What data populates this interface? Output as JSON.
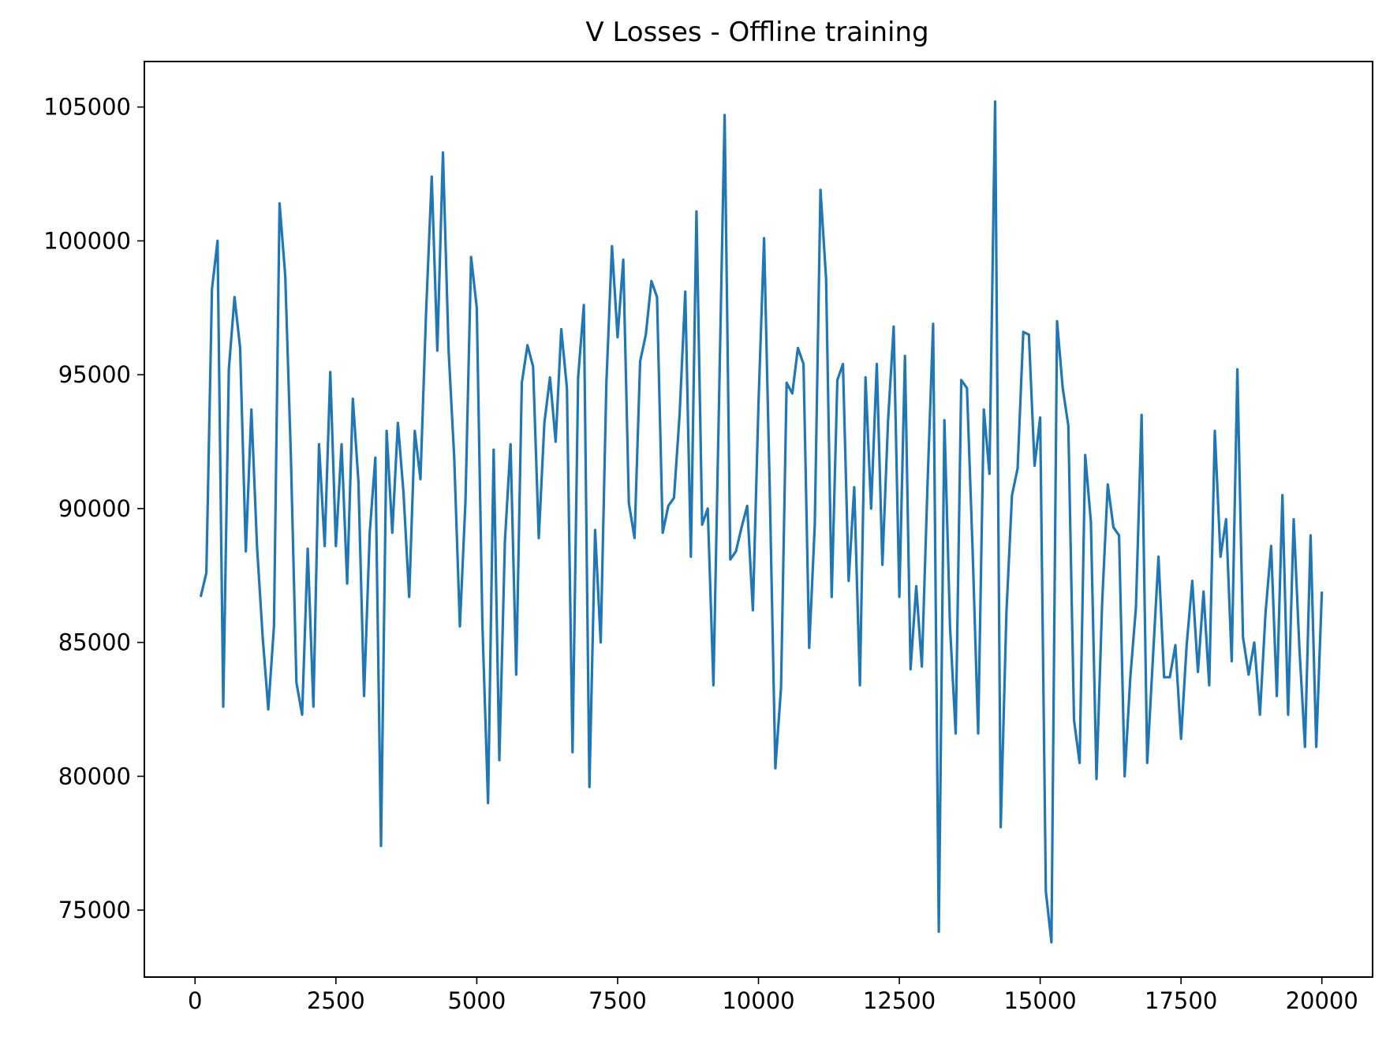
{
  "chart_data": {
    "type": "line",
    "title": "V Losses - Offline training",
    "xlabel": "",
    "ylabel": "",
    "xlim": [
      -900,
      20900
    ],
    "ylim": [
      72500,
      106700
    ],
    "grid": false,
    "legend": "none",
    "xticks": [
      0,
      2500,
      5000,
      7500,
      10000,
      12500,
      15000,
      17500,
      20000
    ],
    "xtick_labels": [
      "0",
      "2500",
      "5000",
      "7500",
      "10000",
      "12500",
      "15000",
      "17500",
      "20000"
    ],
    "yticks": [
      75000,
      80000,
      85000,
      90000,
      95000,
      100000,
      105000
    ],
    "ytick_labels": [
      "75000",
      "80000",
      "85000",
      "90000",
      "95000",
      "100000",
      "105000"
    ],
    "series": [
      {
        "color": "#1f77b4",
        "x": [
          100,
          200,
          300,
          400,
          500,
          600,
          700,
          800,
          900,
          1000,
          1100,
          1200,
          1300,
          1400,
          1500,
          1600,
          1700,
          1800,
          1900,
          2000,
          2100,
          2200,
          2300,
          2400,
          2500,
          2600,
          2700,
          2800,
          2900,
          3000,
          3100,
          3200,
          3300,
          3400,
          3500,
          3600,
          3700,
          3800,
          3900,
          4000,
          4100,
          4200,
          4300,
          4400,
          4500,
          4600,
          4700,
          4800,
          4900,
          5000,
          5100,
          5200,
          5300,
          5400,
          5500,
          5600,
          5700,
          5800,
          5900,
          6000,
          6100,
          6200,
          6300,
          6400,
          6500,
          6600,
          6700,
          6800,
          6900,
          7000,
          7100,
          7200,
          7300,
          7400,
          7500,
          7600,
          7700,
          7800,
          7900,
          8000,
          8100,
          8200,
          8300,
          8400,
          8500,
          8600,
          8700,
          8800,
          8900,
          9000,
          9100,
          9200,
          9300,
          9400,
          9500,
          9600,
          9700,
          9800,
          9900,
          10000,
          10100,
          10200,
          10300,
          10400,
          10500,
          10600,
          10700,
          10800,
          10900,
          11000,
          11100,
          11200,
          11300,
          11400,
          11500,
          11600,
          11700,
          11800,
          11900,
          12000,
          12100,
          12200,
          12300,
          12400,
          12500,
          12600,
          12700,
          12800,
          12900,
          13000,
          13100,
          13200,
          13300,
          13400,
          13500,
          13600,
          13700,
          13800,
          13900,
          14000,
          14100,
          14200,
          14300,
          14400,
          14500,
          14600,
          14700,
          14800,
          14900,
          15000,
          15100,
          15200,
          15300,
          15400,
          15500,
          15600,
          15700,
          15800,
          15900,
          16000,
          16100,
          16200,
          16300,
          16400,
          16500,
          16600,
          16700,
          16800,
          16900,
          17000,
          17100,
          17200,
          17300,
          17400,
          17500,
          17600,
          17700,
          17800,
          17900,
          18000,
          18100,
          18200,
          18300,
          18400,
          18500,
          18600,
          18700,
          18800,
          18900,
          19000,
          19100,
          19200,
          19300,
          19400,
          19500,
          19600,
          19700,
          19800,
          19900,
          20000
        ],
        "y": [
          86700,
          87600,
          98200,
          100000,
          82600,
          95200,
          97900,
          96000,
          88400,
          93700,
          88600,
          85200,
          82500,
          85600,
          101400,
          98700,
          92000,
          83500,
          82300,
          88500,
          82600,
          92400,
          88600,
          95100,
          88600,
          92400,
          87200,
          94100,
          91000,
          83000,
          89100,
          91900,
          77400,
          92900,
          89100,
          93200,
          90600,
          86700,
          92900,
          91100,
          97300,
          102400,
          95900,
          103300,
          95900,
          91900,
          85600,
          90300,
          99400,
          97500,
          85700,
          79000,
          92200,
          80600,
          88800,
          92400,
          83800,
          94700,
          96100,
          95300,
          88900,
          93200,
          94900,
          92500,
          96700,
          94500,
          80900,
          94900,
          97600,
          79600,
          89200,
          85000,
          94700,
          99800,
          96400,
          99300,
          90200,
          88900,
          95500,
          96500,
          98500,
          97900,
          89100,
          90100,
          90400,
          93500,
          98100,
          88200,
          101100,
          89400,
          90000,
          83400,
          94000,
          104700,
          88100,
          88400,
          89300,
          90100,
          86200,
          93900,
          100100,
          90700,
          80300,
          83300,
          94700,
          94300,
          96000,
          95400,
          84800,
          89400,
          101900,
          98600,
          86700,
          94800,
          95400,
          87300,
          90800,
          83400,
          94900,
          90000,
          95400,
          87900,
          93300,
          96800,
          86700,
          95700,
          84000,
          87100,
          84100,
          90900,
          96900,
          74200,
          93300,
          85600,
          81600,
          94800,
          94500,
          88500,
          81600,
          93700,
          91300,
          105200,
          78100,
          86100,
          90500,
          91500,
          96600,
          96500,
          91600,
          93400,
          75700,
          73800,
          97000,
          94500,
          93100,
          82100,
          80500,
          92000,
          89500,
          79900,
          86500,
          90900,
          89300,
          89000,
          80000,
          83700,
          86300,
          93500,
          80500,
          84400,
          88200,
          83700,
          83700,
          84900,
          81400,
          84900,
          87300,
          83900,
          86900,
          83400,
          92900,
          88200,
          89600,
          84300,
          95200,
          85200,
          83800,
          85000,
          82300,
          86100,
          88600,
          83000,
          90500,
          82300,
          89600,
          84800,
          81100,
          89000,
          81100,
          86900
        ]
      }
    ]
  }
}
